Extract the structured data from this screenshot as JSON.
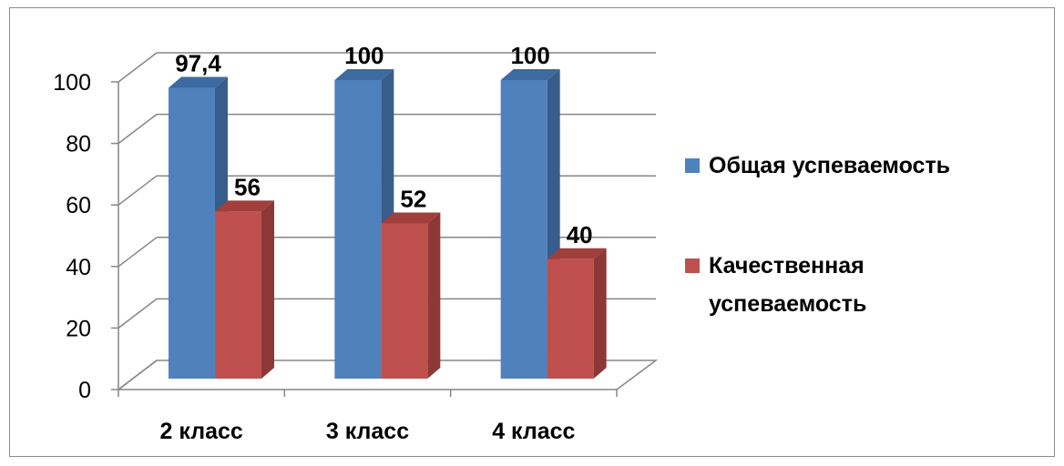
{
  "chart_data": {
    "type": "bar",
    "categories": [
      "2 класс",
      "3 класс",
      "4 класс"
    ],
    "series": [
      {
        "name": "Общая успеваемость",
        "values": [
          97.4,
          100,
          100
        ],
        "labels": [
          "97,4",
          "100",
          "100"
        ],
        "color": "#4f81bd",
        "side_color": "#385d8a",
        "top_color": "#3d6aa0"
      },
      {
        "name": "Качественная успеваемость",
        "values": [
          56,
          52,
          40
        ],
        "labels": [
          "56",
          "52",
          "40"
        ],
        "color": "#c0504d",
        "side_color": "#8c3836",
        "top_color": "#a13f3c"
      }
    ],
    "yticks": [
      "0",
      "20",
      "40",
      "60",
      "80",
      "100"
    ],
    "ylim": [
      0,
      100
    ],
    "grid": true,
    "legend_position": "right",
    "title": "",
    "xlabel": "",
    "ylabel": ""
  },
  "legend": {
    "items": [
      {
        "lines": [
          "Общая успеваемость"
        ]
      },
      {
        "lines": [
          "Качественная",
          "успеваемость"
        ]
      }
    ]
  }
}
